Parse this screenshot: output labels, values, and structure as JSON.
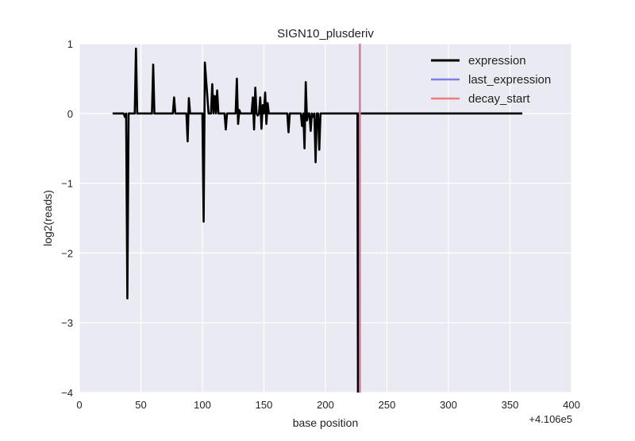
{
  "chart_data": {
    "type": "line",
    "title": "SIGN10_plusderiv",
    "xlabel": "base position",
    "ylabel": "log2(reads)",
    "x_offset_label": "+4.106e5",
    "xlim": [
      0,
      400
    ],
    "ylim": [
      -4,
      1
    ],
    "x_ticks": [
      0,
      50,
      100,
      150,
      200,
      250,
      300,
      350,
      400
    ],
    "y_ticks": [
      1,
      0,
      -1,
      -2,
      -3,
      -4
    ],
    "x_tick_labels": [
      "0",
      "50",
      "100",
      "150",
      "200",
      "250",
      "300",
      "350",
      "400"
    ],
    "y_tick_labels": [
      "1",
      "0",
      "−1",
      "−2",
      "−3",
      "−4"
    ],
    "grid": true,
    "legend_position": "top-right",
    "series": [
      {
        "name": "expression",
        "color": "#000000",
        "x": [
          27,
          36,
          37,
          38,
          39,
          40,
          41,
          45,
          46,
          47,
          48,
          59,
          60,
          61,
          62,
          76,
          77,
          78,
          87,
          88,
          89,
          90,
          100,
          101,
          102,
          105,
          107,
          108,
          109,
          110,
          111,
          112,
          113,
          118,
          119,
          120,
          127,
          128,
          129,
          130,
          131,
          140,
          141,
          142,
          143,
          144,
          145,
          146,
          147,
          148,
          149,
          150,
          151,
          152,
          153,
          154,
          155,
          156,
          157,
          169,
          170,
          171,
          180,
          181,
          182,
          183,
          184,
          185,
          186,
          187,
          188,
          189,
          190,
          191,
          192,
          193,
          194,
          195,
          196,
          197,
          198,
          199,
          226,
          226.5,
          227,
          360
        ],
        "y": [
          0,
          0,
          -0.05,
          0,
          -2.65,
          0,
          0,
          0,
          0.93,
          0,
          0,
          0,
          0.7,
          0,
          0,
          0,
          0.23,
          0,
          0,
          -0.4,
          0.22,
          0,
          0,
          -1.55,
          0.73,
          0,
          0,
          0.42,
          0,
          0.25,
          0,
          0.33,
          0,
          0,
          -0.23,
          0,
          0,
          0.5,
          -0.15,
          0.05,
          0,
          0,
          0.23,
          -0.23,
          0.37,
          0,
          -0.03,
          0,
          0.23,
          -0.22,
          0.12,
          0,
          0.3,
          -0.15,
          0.15,
          0,
          0,
          0,
          0,
          0,
          -0.27,
          0,
          0,
          -0.18,
          0,
          -0.5,
          0.45,
          -0.1,
          0,
          0,
          -0.25,
          0,
          -0.05,
          0,
          -0.7,
          0,
          0,
          -0.52,
          0,
          0,
          0,
          0,
          0,
          -4.5,
          0,
          0
        ]
      },
      {
        "name": "last_expression",
        "color": "#7e7eeb",
        "vertical_line_x": 228
      },
      {
        "name": "decay_start",
        "color": "#ee7e7e",
        "vertical_line_x": 228
      }
    ]
  },
  "colors": {
    "plot_background": "#eaeaf2",
    "grid": "#ffffff",
    "overlap_line": "#b6458e"
  }
}
